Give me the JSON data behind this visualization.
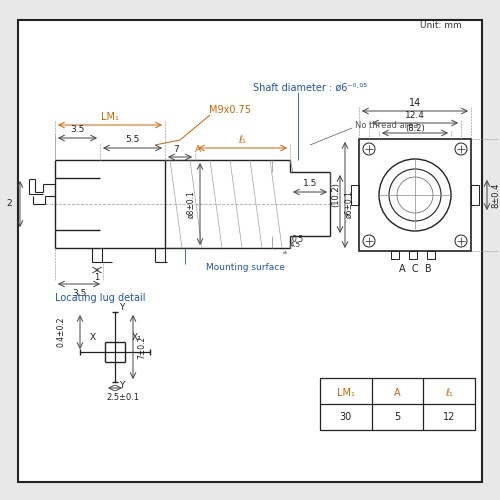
{
  "bg_color": "#e8e8e8",
  "drawing_bg": "#ffffff",
  "border_color": "#222222",
  "line_color": "#222222",
  "dim_color": "#444444",
  "orange_color": "#cc6600",
  "blue_color": "#2255aa",
  "unit_text": "Unit: mm",
  "table_headers": [
    "LM₁",
    "A",
    "ℓ₁"
  ],
  "table_values": [
    "30",
    "5",
    "12"
  ]
}
